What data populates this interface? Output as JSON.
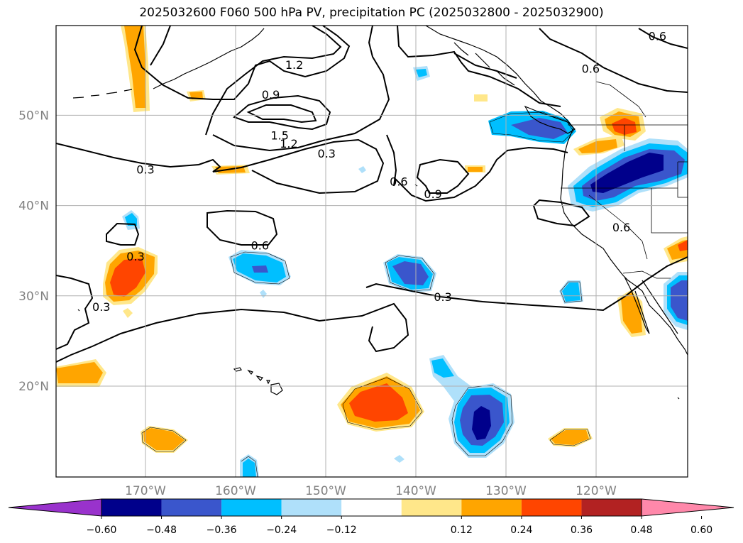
{
  "title": "2025032600 F060 500 hPa PV, precipitation PC (2025032800 - 2025032900)",
  "map": {
    "lon_range": [
      -180,
      -110
    ],
    "lat_range": [
      10,
      60
    ],
    "lat_ticks": [
      {
        "value": 20,
        "label": "20°N"
      },
      {
        "value": 30,
        "label": "30°N"
      },
      {
        "value": 40,
        "label": "40°N"
      },
      {
        "value": 50,
        "label": "50°N"
      }
    ],
    "lon_ticks": [
      {
        "value": -170,
        "label": "170°W"
      },
      {
        "value": -160,
        "label": "160°W"
      },
      {
        "value": -150,
        "label": "150°W"
      },
      {
        "value": -140,
        "label": "140°W"
      },
      {
        "value": -130,
        "label": "130°W"
      },
      {
        "value": -120,
        "label": "120°W"
      }
    ],
    "grid": true
  },
  "contour_labels": [
    {
      "text": "1.2",
      "lon": -153.5,
      "lat": 55.6
    },
    {
      "text": "0.9",
      "lon": -156.1,
      "lat": 52.3
    },
    {
      "text": "1.5",
      "lon": -155.1,
      "lat": 47.8
    },
    {
      "text": "1.2",
      "lon": -154.1,
      "lat": 46.9
    },
    {
      "text": "0.3",
      "lon": -149.9,
      "lat": 45.8
    },
    {
      "text": "0.3",
      "lon": -170.0,
      "lat": 44.0
    },
    {
      "text": "0.6",
      "lon": -141.9,
      "lat": 42.7
    },
    {
      "text": "0.9",
      "lon": -138.1,
      "lat": 41.3
    },
    {
      "text": "0.6",
      "lon": -157.3,
      "lat": 35.6
    },
    {
      "text": "0.3",
      "lon": -171.1,
      "lat": 34.4
    },
    {
      "text": "0.3",
      "lon": -174.9,
      "lat": 28.8
    },
    {
      "text": "0.3",
      "lon": -137.0,
      "lat": 29.9
    },
    {
      "text": "0.6",
      "lon": -117.2,
      "lat": 37.6
    },
    {
      "text": "0.6",
      "lon": -120.6,
      "lat": 55.2
    },
    {
      "text": "0.6",
      "lon": -113.2,
      "lat": 58.8
    }
  ],
  "colorbar": {
    "ticks": [
      "−0.60",
      "−0.48",
      "−0.36",
      "−0.24",
      "−0.12",
      "0.12",
      "0.24",
      "0.36",
      "0.48",
      "0.60"
    ],
    "colors": [
      "#9932cc",
      "#00008b",
      "#3a56cc",
      "#00bfff",
      "#afe0fa",
      "#ffffff",
      "#ffe78a",
      "#ffa500",
      "#ff4500",
      "#b22222",
      "#ff88aa"
    ]
  }
}
